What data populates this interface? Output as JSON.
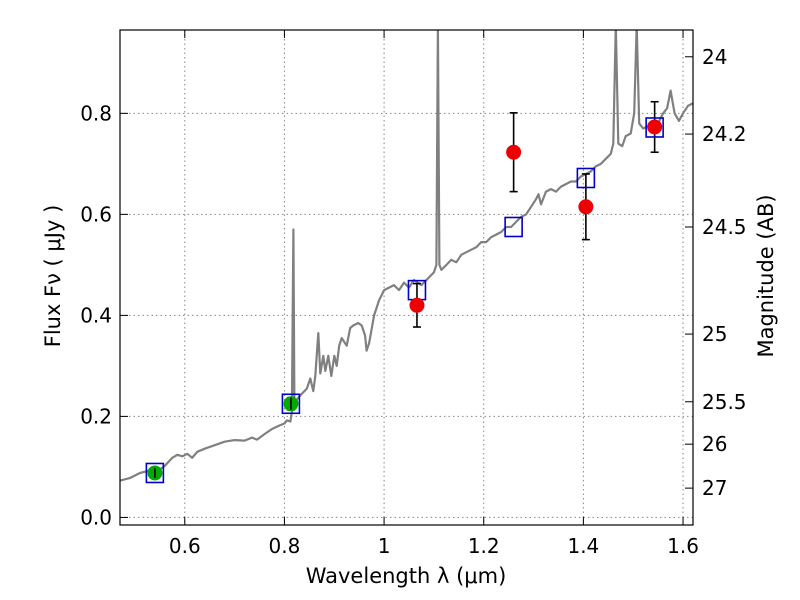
{
  "chart_data": {
    "type": "scatter",
    "xlabel": "Wavelength  λ (μm)",
    "ylabel": "Flux  Fν  ( μJy )",
    "y2label": "Magnitude (AB)",
    "xlim": [
      0.47,
      1.62
    ],
    "ylim": [
      -0.015,
      0.965
    ],
    "grid": true,
    "x_ticks": [
      0.6,
      0.8,
      1.0,
      1.2,
      1.4,
      1.6
    ],
    "x_tick_labels": [
      "0.6",
      "0.8",
      "1",
      "1.2",
      "1.4",
      "1.6"
    ],
    "y_ticks": [
      0.0,
      0.2,
      0.4,
      0.6,
      0.8
    ],
    "y_tick_labels": [
      "0.0",
      "0.2",
      "0.4",
      "0.6",
      "0.8"
    ],
    "mag_ticks": [
      {
        "label": "24",
        "flux": 0.912
      },
      {
        "label": "24.2",
        "flux": 0.759
      },
      {
        "label": "24.5",
        "flux": 0.575
      },
      {
        "label": "25",
        "flux": 0.363
      },
      {
        "label": "25.5",
        "flux": 0.229
      },
      {
        "label": "26",
        "flux": 0.145
      },
      {
        "label": "27",
        "flux": 0.058
      }
    ],
    "colors": {
      "spectrum": "#808080",
      "model_box": "#0000cc",
      "detection_green": "#00aa00",
      "detection_red": "#ee0000",
      "errorbar": "#000000",
      "grid": "#888888"
    },
    "model_photometry": [
      {
        "x": 0.54,
        "y": 0.088
      },
      {
        "x": 0.813,
        "y": 0.225
      },
      {
        "x": 1.066,
        "y": 0.45
      },
      {
        "x": 1.26,
        "y": 0.575
      },
      {
        "x": 1.405,
        "y": 0.672
      },
      {
        "x": 1.543,
        "y": 0.772
      }
    ],
    "observed_photometry": [
      {
        "x": 0.54,
        "y": 0.088,
        "err": 0.01,
        "color": "green"
      },
      {
        "x": 0.813,
        "y": 0.225,
        "err": 0.012,
        "color": "green"
      },
      {
        "x": 1.066,
        "y": 0.42,
        "err": 0.043,
        "color": "red"
      },
      {
        "x": 1.26,
        "y": 0.723,
        "err": 0.078,
        "color": "red"
      },
      {
        "x": 1.405,
        "y": 0.615,
        "err": 0.065,
        "color": "red"
      },
      {
        "x": 1.543,
        "y": 0.773,
        "err": 0.05,
        "color": "red"
      }
    ],
    "spectrum": [
      [
        0.47,
        0.073
      ],
      [
        0.49,
        0.078
      ],
      [
        0.51,
        0.088
      ],
      [
        0.53,
        0.093
      ],
      [
        0.545,
        0.092
      ],
      [
        0.56,
        0.102
      ],
      [
        0.575,
        0.118
      ],
      [
        0.585,
        0.124
      ],
      [
        0.595,
        0.121
      ],
      [
        0.605,
        0.126
      ],
      [
        0.615,
        0.118
      ],
      [
        0.625,
        0.13
      ],
      [
        0.64,
        0.136
      ],
      [
        0.66,
        0.143
      ],
      [
        0.68,
        0.15
      ],
      [
        0.7,
        0.153
      ],
      [
        0.72,
        0.152
      ],
      [
        0.735,
        0.158
      ],
      [
        0.745,
        0.154
      ],
      [
        0.76,
        0.165
      ],
      [
        0.775,
        0.175
      ],
      [
        0.79,
        0.182
      ],
      [
        0.8,
        0.186
      ],
      [
        0.805,
        0.192
      ],
      [
        0.812,
        0.19
      ],
      [
        0.815,
        0.21
      ],
      [
        0.818,
        0.57
      ],
      [
        0.82,
        0.22
      ],
      [
        0.826,
        0.235
      ],
      [
        0.835,
        0.245
      ],
      [
        0.845,
        0.255
      ],
      [
        0.852,
        0.275
      ],
      [
        0.858,
        0.25
      ],
      [
        0.862,
        0.28
      ],
      [
        0.868,
        0.365
      ],
      [
        0.872,
        0.285
      ],
      [
        0.878,
        0.32
      ],
      [
        0.882,
        0.29
      ],
      [
        0.888,
        0.32
      ],
      [
        0.894,
        0.28
      ],
      [
        0.9,
        0.32
      ],
      [
        0.905,
        0.3
      ],
      [
        0.91,
        0.34
      ],
      [
        0.915,
        0.355
      ],
      [
        0.925,
        0.34
      ],
      [
        0.932,
        0.375
      ],
      [
        0.938,
        0.38
      ],
      [
        0.948,
        0.385
      ],
      [
        0.955,
        0.38
      ],
      [
        0.962,
        0.36
      ],
      [
        0.965,
        0.33
      ],
      [
        0.97,
        0.345
      ],
      [
        0.98,
        0.4
      ],
      [
        0.99,
        0.43
      ],
      [
        1.0,
        0.45
      ],
      [
        1.01,
        0.455
      ],
      [
        1.02,
        0.46
      ],
      [
        1.03,
        0.45
      ],
      [
        1.04,
        0.465
      ],
      [
        1.05,
        0.455
      ],
      [
        1.06,
        0.47
      ],
      [
        1.075,
        0.46
      ],
      [
        1.09,
        0.475
      ],
      [
        1.1,
        0.485
      ],
      [
        1.105,
        0.5
      ],
      [
        1.108,
        0.975
      ],
      [
        1.111,
        0.5
      ],
      [
        1.115,
        0.49
      ],
      [
        1.125,
        0.5
      ],
      [
        1.135,
        0.51
      ],
      [
        1.145,
        0.505
      ],
      [
        1.155,
        0.52
      ],
      [
        1.165,
        0.525
      ],
      [
        1.175,
        0.53
      ],
      [
        1.185,
        0.535
      ],
      [
        1.195,
        0.545
      ],
      [
        1.205,
        0.545
      ],
      [
        1.215,
        0.555
      ],
      [
        1.225,
        0.56
      ],
      [
        1.235,
        0.565
      ],
      [
        1.245,
        0.575
      ],
      [
        1.255,
        0.575
      ],
      [
        1.265,
        0.585
      ],
      [
        1.275,
        0.595
      ],
      [
        1.285,
        0.6
      ],
      [
        1.295,
        0.615
      ],
      [
        1.305,
        0.63
      ],
      [
        1.31,
        0.64
      ],
      [
        1.315,
        0.62
      ],
      [
        1.325,
        0.645
      ],
      [
        1.335,
        0.65
      ],
      [
        1.345,
        0.645
      ],
      [
        1.355,
        0.655
      ],
      [
        1.365,
        0.66
      ],
      [
        1.375,
        0.665
      ],
      [
        1.385,
        0.665
      ],
      [
        1.395,
        0.675
      ],
      [
        1.405,
        0.68
      ],
      [
        1.415,
        0.685
      ],
      [
        1.425,
        0.695
      ],
      [
        1.435,
        0.7
      ],
      [
        1.445,
        0.71
      ],
      [
        1.455,
        0.72
      ],
      [
        1.46,
        0.74
      ],
      [
        1.465,
        0.975
      ],
      [
        1.47,
        0.74
      ],
      [
        1.478,
        0.735
      ],
      [
        1.485,
        0.755
      ],
      [
        1.495,
        0.76
      ],
      [
        1.502,
        0.8
      ],
      [
        1.507,
        0.975
      ],
      [
        1.512,
        0.78
      ],
      [
        1.52,
        0.77
      ],
      [
        1.53,
        0.775
      ],
      [
        1.54,
        0.77
      ],
      [
        1.55,
        0.78
      ],
      [
        1.56,
        0.8
      ],
      [
        1.568,
        0.81
      ],
      [
        1.575,
        0.845
      ],
      [
        1.583,
        0.8
      ],
      [
        1.592,
        0.785
      ],
      [
        1.6,
        0.8
      ],
      [
        1.61,
        0.815
      ],
      [
        1.62,
        0.82
      ]
    ]
  }
}
